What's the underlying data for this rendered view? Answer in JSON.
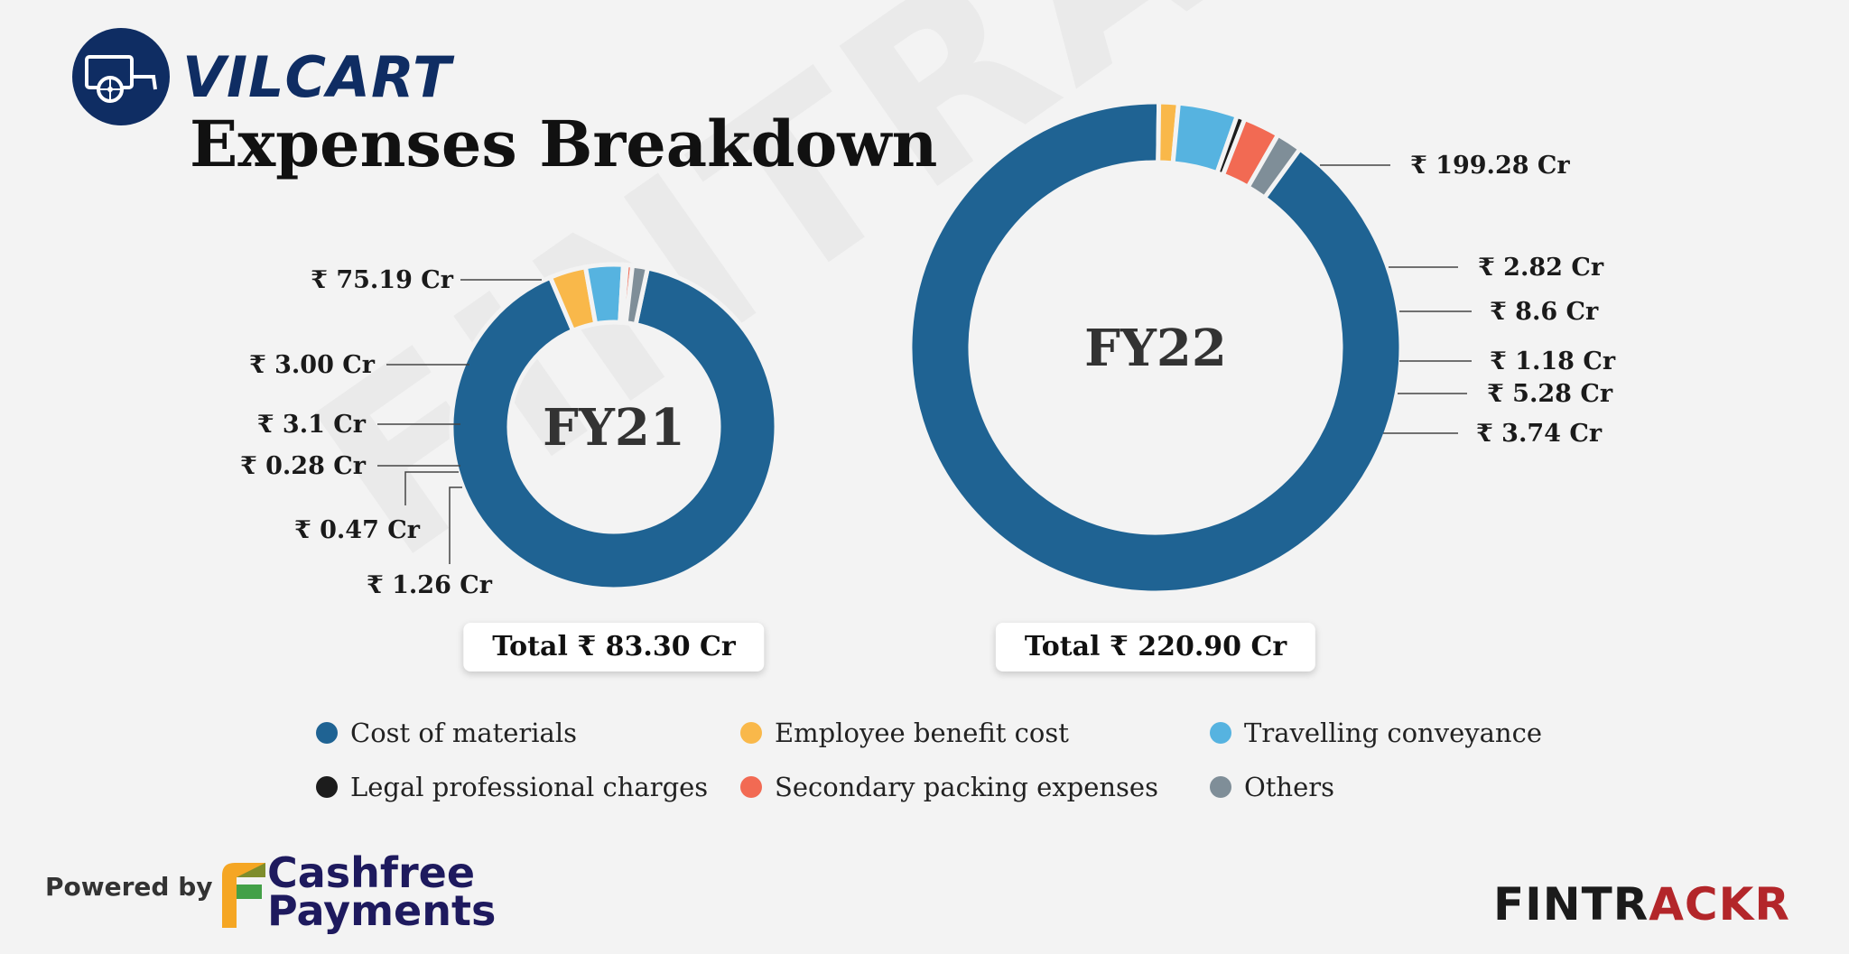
{
  "brand": {
    "name": "VILCART"
  },
  "title": "Expenses Breakdown",
  "colors": {
    "cost_of_materials": "#1f6393",
    "employee_benefit": "#f9b84a",
    "travelling": "#56b3e0",
    "legal": "#1c1c1c",
    "secondary_packing": "#f26a53",
    "others": "#7f8e98"
  },
  "chart_data": [
    {
      "type": "pie",
      "center_label": "FY21",
      "total_label": "Total ₹ 83.30 Cr",
      "series": [
        {
          "name": "Cost of materials",
          "value": 75.19,
          "label": "₹ 75.19 Cr"
        },
        {
          "name": "Employee benefit cost",
          "value": 3.0,
          "label": "₹ 3.00 Cr"
        },
        {
          "name": "Travelling conveyance",
          "value": 3.1,
          "label": "₹ 3.1 Cr"
        },
        {
          "name": "Legal professional charges",
          "value": 0.28,
          "label": "₹ 0.28 Cr"
        },
        {
          "name": "Secondary packing expenses",
          "value": 0.47,
          "label": "₹ 0.47 Cr"
        },
        {
          "name": "Others",
          "value": 1.26,
          "label": "₹ 1.26 Cr"
        }
      ]
    },
    {
      "type": "pie",
      "center_label": "FY22",
      "total_label": "Total ₹ 220.90 Cr",
      "series": [
        {
          "name": "Cost of materials",
          "value": 199.28,
          "label": "₹ 199.28 Cr"
        },
        {
          "name": "Employee benefit cost",
          "value": 2.82,
          "label": "₹ 2.82 Cr"
        },
        {
          "name": "Travelling conveyance",
          "value": 8.6,
          "label": "₹ 8.6 Cr"
        },
        {
          "name": "Legal professional charges",
          "value": 1.18,
          "label": "₹ 1.18 Cr"
        },
        {
          "name": "Secondary packing expenses",
          "value": 5.28,
          "label": "₹ 5.28 Cr"
        },
        {
          "name": "Others",
          "value": 3.74,
          "label": "₹ 3.74 Cr"
        }
      ]
    }
  ],
  "legend": [
    {
      "label": "Cost of materials",
      "color": "#1f6393"
    },
    {
      "label": "Employee benefit cost",
      "color": "#f9b84a"
    },
    {
      "label": "Travelling conveyance",
      "color": "#56b3e0"
    },
    {
      "label": "Legal professional charges",
      "color": "#1c1c1c"
    },
    {
      "label": "Secondary packing expenses",
      "color": "#f26a53"
    },
    {
      "label": "Others",
      "color": "#7f8e98"
    }
  ],
  "footer": {
    "powered_by": "Powered by",
    "cashfree_line1": "Cashfree",
    "cashfree_line2": "Payments",
    "fintrackr_part1": "FINTR",
    "fintrackr_part2": "ACKR",
    "watermark": "FINTRACKR"
  }
}
